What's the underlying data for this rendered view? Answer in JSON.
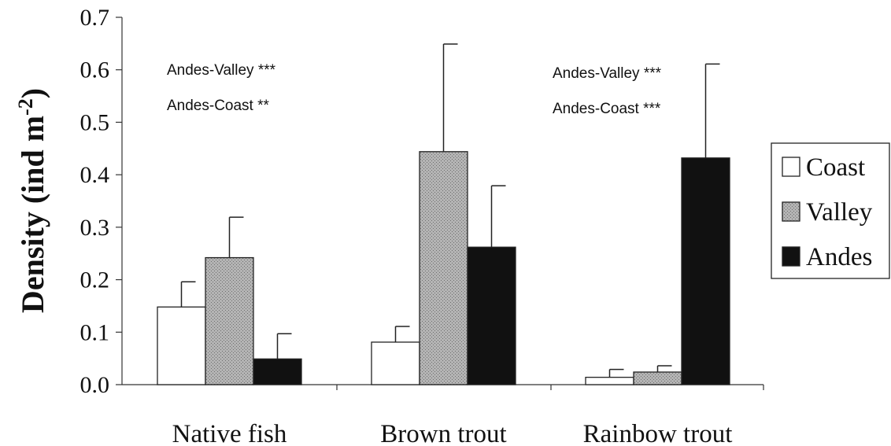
{
  "chart_data": {
    "type": "bar",
    "ylabel": "Density (ind m",
    "ylabel_sup": "-2",
    "ylabel_close": ")",
    "ylim": [
      0,
      0.7
    ],
    "yticks": [
      "0.0",
      "0.1",
      "0.2",
      "0.3",
      "0.4",
      "0.5",
      "0.6",
      "0.7"
    ],
    "categories": [
      "Native fish",
      "Brown trout",
      "Rainbow trout"
    ],
    "series": [
      {
        "name": "Coast",
        "color": "#ffffff",
        "values": [
          0.148,
          0.081,
          0.014
        ],
        "errors": [
          0.048,
          0.03,
          0.015
        ]
      },
      {
        "name": "Valley",
        "color": "#a9a9a9",
        "values": [
          0.242,
          0.444,
          0.024
        ],
        "errors": [
          0.077,
          0.205,
          0.012
        ]
      },
      {
        "name": "Andes",
        "color": "#111111",
        "values": [
          0.049,
          0.262,
          0.432
        ],
        "errors": [
          0.048,
          0.117,
          0.179
        ]
      }
    ],
    "annotations": [
      {
        "group": "Native fish",
        "lines": [
          "Andes-Valley ***",
          "Andes-Coast **"
        ]
      },
      {
        "group": "Rainbow trout",
        "lines": [
          "Andes-Valley ***",
          "Andes-Coast ***"
        ]
      }
    ],
    "legend": {
      "position": "right"
    },
    "grid": false
  }
}
